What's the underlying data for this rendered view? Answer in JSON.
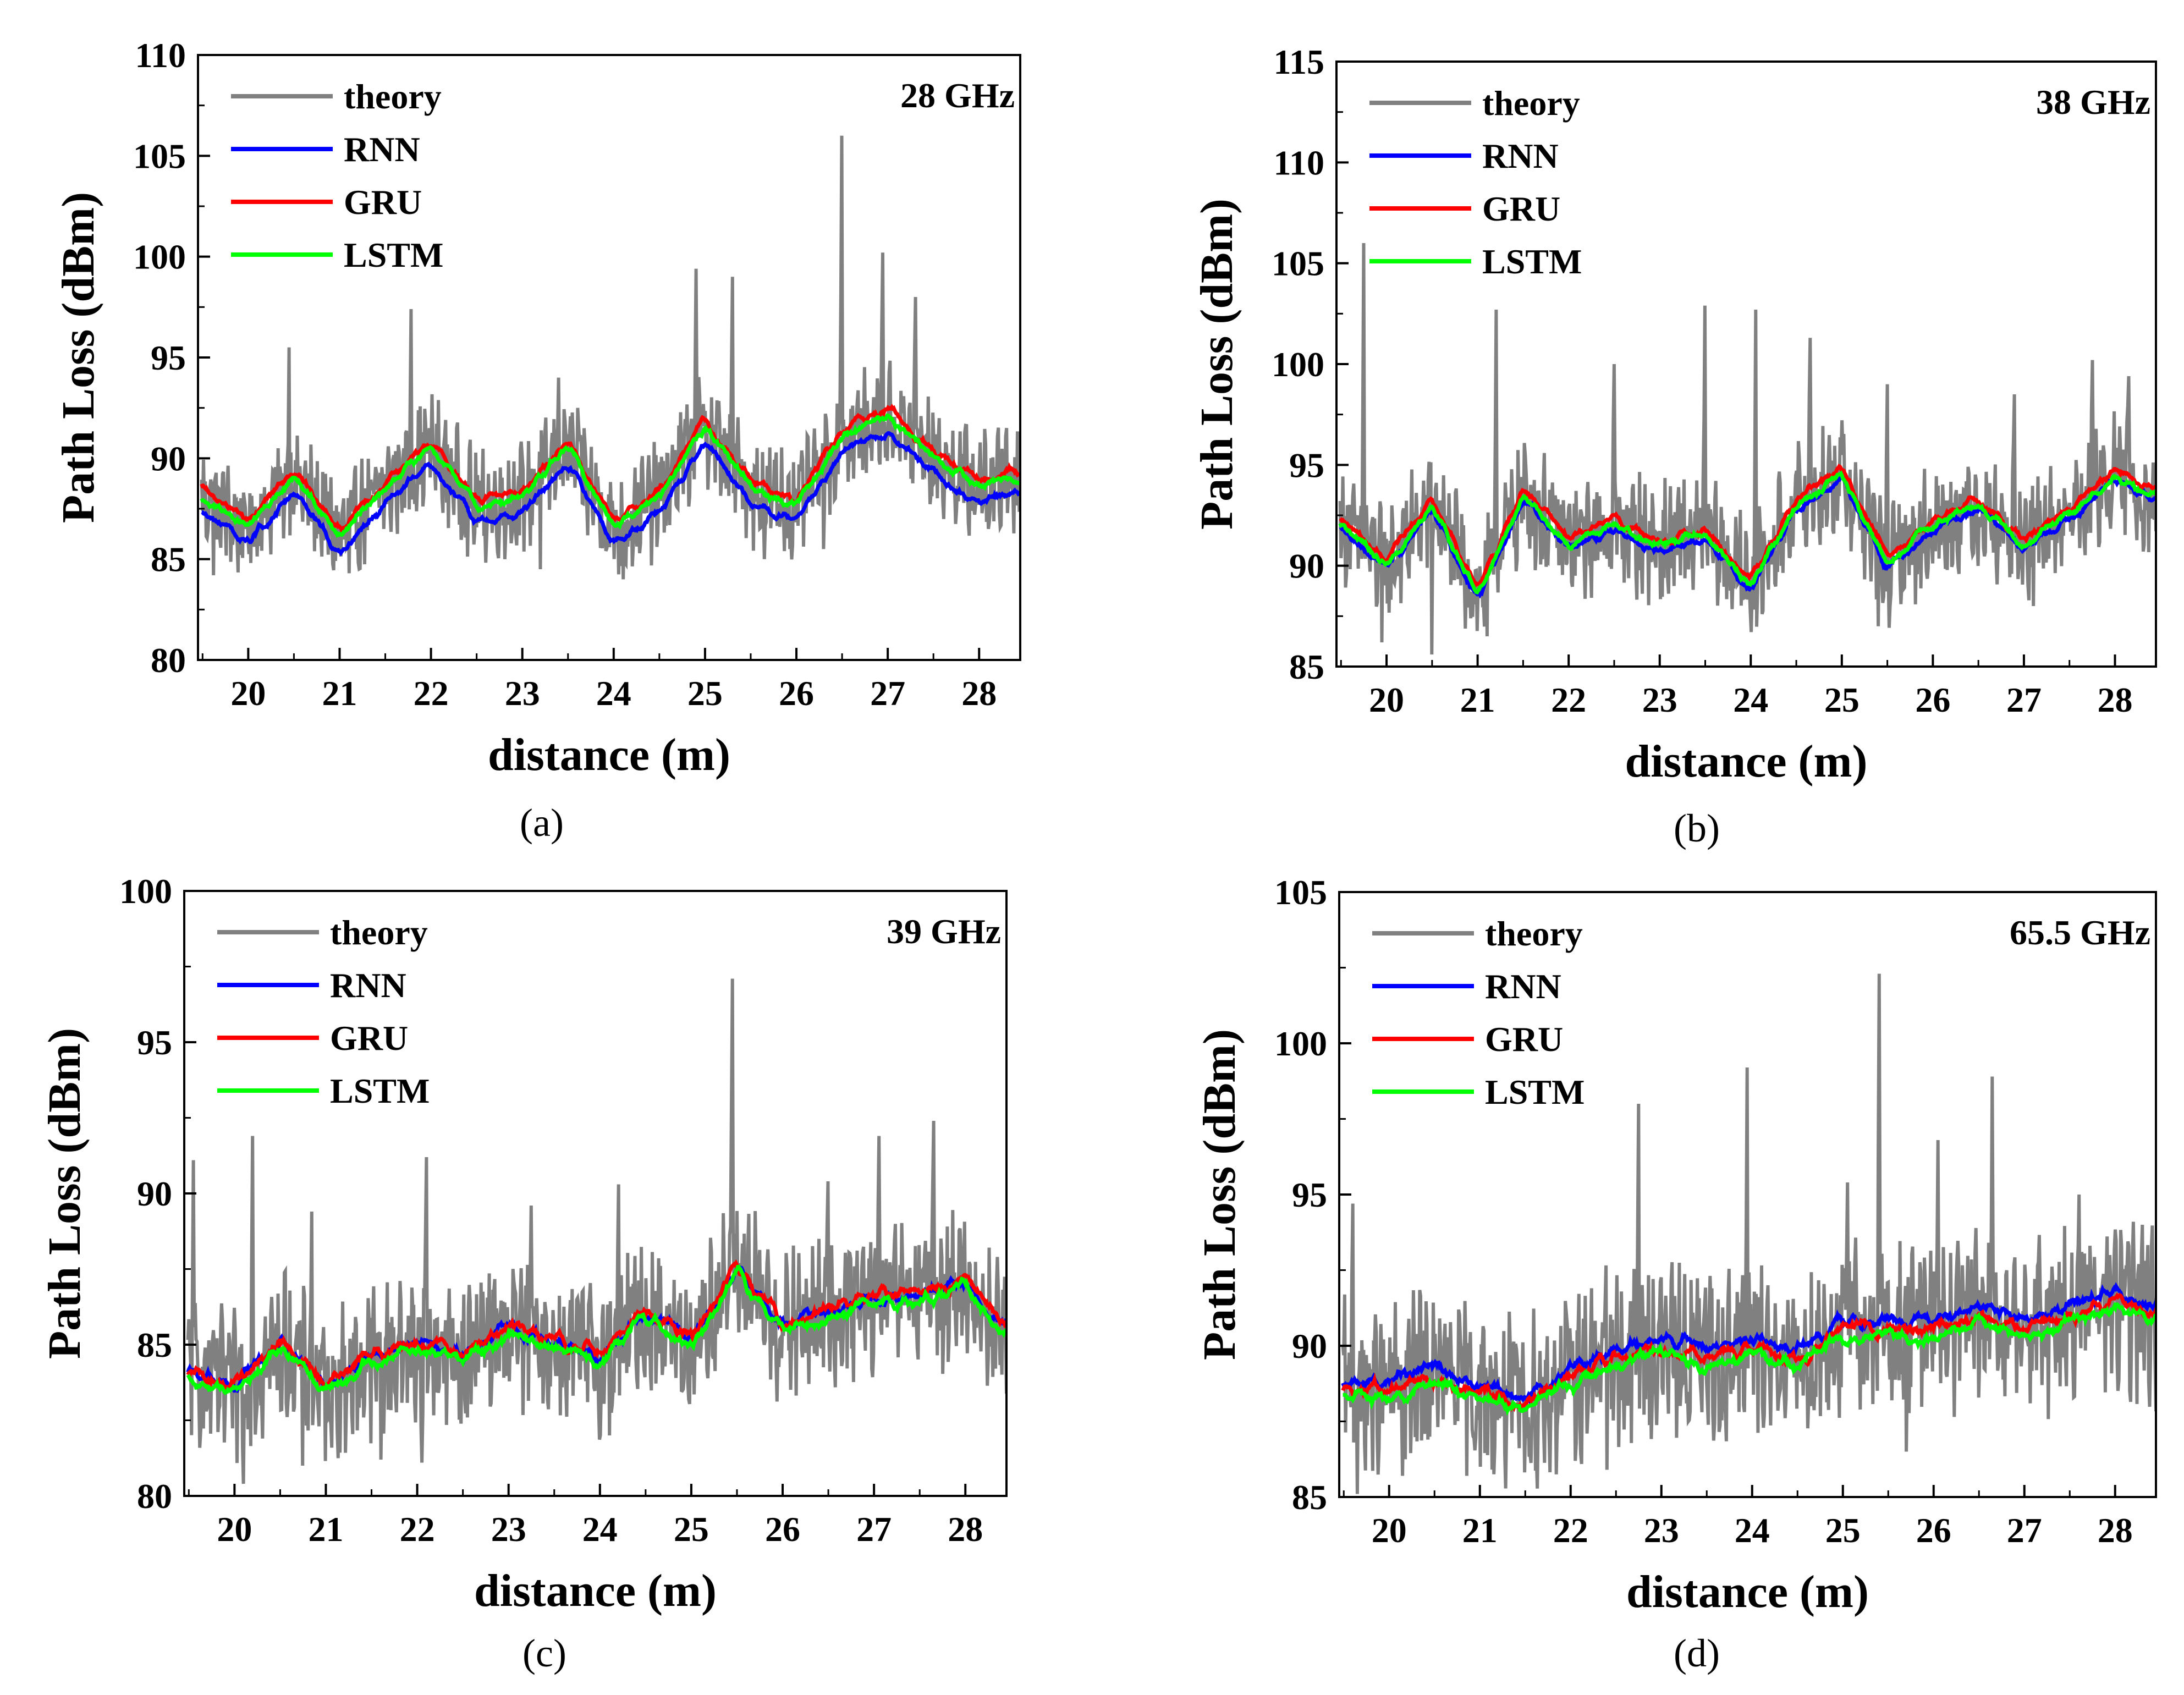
{
  "series_styles": [
    {
      "name": "theory",
      "color": "#808080"
    },
    {
      "name": "RNN",
      "color": "#0000ff"
    },
    {
      "name": "GRU",
      "color": "#ff0000"
    },
    {
      "name": "LSTM",
      "color": "#00ff00"
    }
  ],
  "chart_data": [
    {
      "type": "line",
      "panel": "a",
      "caption": "(a)",
      "frequency_label": "28 GHz",
      "xlabel": "distance (m)",
      "ylabel": "Path Loss (dBm)",
      "xlim": [
        19.45,
        28.45
      ],
      "ylim": [
        80,
        110
      ],
      "xticks": [
        20,
        21,
        22,
        23,
        24,
        25,
        26,
        27,
        28
      ],
      "yticks": [
        80,
        85,
        90,
        95,
        100,
        105,
        110
      ],
      "legend": [
        "theory",
        "RNN",
        "GRU",
        "LSTM"
      ],
      "legend_position": "top-left",
      "x": [
        19.5,
        20.0,
        20.5,
        21.0,
        21.5,
        22.0,
        22.5,
        23.0,
        23.5,
        24.0,
        24.5,
        25.0,
        25.5,
        26.0,
        26.5,
        27.0,
        27.5,
        28.0,
        28.4
      ],
      "trend": [
        88.0,
        86.5,
        89.0,
        86.0,
        88.5,
        90.5,
        87.5,
        88.0,
        90.5,
        86.5,
        88.0,
        91.5,
        88.5,
        87.5,
        91.0,
        92.0,
        90.0,
        88.5,
        89.0
      ],
      "theory_noise": 2.2,
      "theory_spikes": [
        [
          19.62,
          91.7
        ],
        [
          20.45,
          95.5
        ],
        [
          21.78,
          97.4
        ],
        [
          23.4,
          94.0
        ],
        [
          24.9,
          99.4
        ],
        [
          25.3,
          99.0
        ],
        [
          26.5,
          106.0
        ],
        [
          26.95,
          100.2
        ],
        [
          27.3,
          98.0
        ],
        [
          28.3,
          91.5
        ]
      ],
      "theory_dips": [
        [
          19.62,
          84.2
        ],
        [
          21.1,
          84.3
        ],
        [
          23.2,
          84.5
        ],
        [
          24.1,
          84.0
        ],
        [
          25.65,
          85.0
        ],
        [
          26.3,
          85.5
        ],
        [
          28.1,
          86.5
        ]
      ],
      "series_offsets": {
        "RNN": -0.7,
        "GRU": 0.4,
        "LSTM": 0.1
      }
    },
    {
      "type": "line",
      "panel": "b",
      "caption": "(b)",
      "frequency_label": "38 GHz",
      "xlabel": "distance (m)",
      "ylabel": "Path Loss (dBm)",
      "xlim": [
        19.45,
        28.45
      ],
      "ylim": [
        85,
        115
      ],
      "xticks": [
        20,
        21,
        22,
        23,
        24,
        25,
        26,
        27,
        28
      ],
      "yticks": [
        85,
        90,
        95,
        100,
        105,
        110,
        115
      ],
      "legend": [
        "theory",
        "RNN",
        "GRU",
        "LSTM"
      ],
      "legend_position": "top-left",
      "x": [
        19.5,
        20.0,
        20.5,
        21.0,
        21.5,
        22.0,
        22.5,
        23.0,
        23.5,
        24.0,
        24.5,
        25.0,
        25.5,
        26.0,
        26.5,
        27.0,
        27.5,
        28.0,
        28.4
      ],
      "trend": [
        92.0,
        90.0,
        93.0,
        88.5,
        93.5,
        91.0,
        92.0,
        91.0,
        91.5,
        89.0,
        93.0,
        94.5,
        90.0,
        92.0,
        93.0,
        91.0,
        92.5,
        94.5,
        93.5
      ],
      "theory_noise": 2.4,
      "theory_spikes": [
        [
          19.75,
          106.0
        ],
        [
          21.2,
          102.7
        ],
        [
          22.5,
          100.0
        ],
        [
          23.5,
          102.9
        ],
        [
          24.05,
          102.7
        ],
        [
          24.65,
          101.3
        ],
        [
          25.5,
          99.0
        ],
        [
          26.9,
          98.5
        ],
        [
          27.75,
          100.2
        ],
        [
          28.15,
          99.4
        ]
      ],
      "theory_dips": [
        [
          19.95,
          86.2
        ],
        [
          20.5,
          85.6
        ],
        [
          21.1,
          86.5
        ],
        [
          25.4,
          87.0
        ],
        [
          27.1,
          88.0
        ]
      ],
      "series_offsets": {
        "RNN": -0.2,
        "GRU": 0.3,
        "LSTM": 0.0
      }
    },
    {
      "type": "line",
      "panel": "c",
      "caption": "(c)",
      "frequency_label": "39 GHz",
      "xlabel": "distance (m)",
      "ylabel": "Path Loss (dBm)",
      "xlim": [
        19.45,
        28.45
      ],
      "ylim": [
        80,
        100
      ],
      "xticks": [
        20,
        21,
        22,
        23,
        24,
        25,
        26,
        27,
        28
      ],
      "yticks": [
        80,
        85,
        90,
        95,
        100
      ],
      "legend": [
        "theory",
        "RNN",
        "GRU",
        "LSTM"
      ],
      "legend_position": "top-left",
      "x": [
        19.5,
        20.0,
        20.5,
        21.0,
        21.5,
        22.0,
        22.5,
        23.0,
        23.5,
        24.0,
        24.5,
        25.0,
        25.5,
        26.0,
        26.5,
        27.0,
        27.5,
        28.0,
        28.4
      ],
      "trend": [
        84.0,
        83.5,
        85.0,
        83.5,
        84.5,
        85.0,
        84.5,
        85.5,
        85.0,
        84.5,
        86.0,
        85.0,
        87.5,
        85.5,
        86.0,
        86.5,
        86.5,
        87.0,
        85.5
      ],
      "theory_noise": 2.0,
      "theory_spikes": [
        [
          19.55,
          91.1
        ],
        [
          20.2,
          91.9
        ],
        [
          20.85,
          89.4
        ],
        [
          22.1,
          91.2
        ],
        [
          23.25,
          89.6
        ],
        [
          24.2,
          90.3
        ],
        [
          25.45,
          97.1
        ],
        [
          26.5,
          90.4
        ],
        [
          27.05,
          91.9
        ],
        [
          27.65,
          92.4
        ]
      ],
      "theory_dips": [
        [
          20.1,
          80.4
        ],
        [
          20.75,
          81.0
        ],
        [
          21.6,
          81.2
        ],
        [
          22.05,
          81.1
        ],
        [
          24.1,
          82.0
        ]
      ],
      "series_offsets": {
        "RNN": 0.1,
        "GRU": 0.2,
        "LSTM": -0.1
      }
    },
    {
      "type": "line",
      "panel": "d",
      "caption": "(d)",
      "frequency_label": "65.5 GHz",
      "xlabel": "distance (m)",
      "ylabel": "Path Loss (dBm)",
      "xlim": [
        19.45,
        28.45
      ],
      "ylim": [
        85,
        105
      ],
      "xticks": [
        20,
        21,
        22,
        23,
        24,
        25,
        26,
        27,
        28
      ],
      "yticks": [
        85,
        90,
        95,
        100,
        105
      ],
      "legend": [
        "theory",
        "RNN",
        "GRU",
        "LSTM"
      ],
      "legend_position": "top-left",
      "x": [
        19.5,
        20.0,
        20.5,
        21.0,
        21.5,
        22.0,
        22.5,
        23.0,
        23.5,
        24.0,
        24.5,
        25.0,
        25.5,
        26.0,
        26.5,
        27.0,
        27.5,
        28.0,
        28.4
      ],
      "trend": [
        88.5,
        88.5,
        89.0,
        88.5,
        88.0,
        89.0,
        89.5,
        90.0,
        89.5,
        90.0,
        89.5,
        90.5,
        90.5,
        90.5,
        91.0,
        90.5,
        91.0,
        91.5,
        91.0
      ],
      "theory_noise": 2.3,
      "theory_spikes": [
        [
          19.6,
          94.7
        ],
        [
          22.4,
          96.4
        ],
        [
          22.75,
          98.0
        ],
        [
          23.95,
          99.2
        ],
        [
          25.05,
          95.4
        ],
        [
          25.4,
          102.3
        ],
        [
          26.05,
          96.8
        ],
        [
          26.65,
          98.9
        ],
        [
          27.6,
          95.0
        ],
        [
          28.3,
          94.0
        ]
      ],
      "theory_dips": [
        [
          19.65,
          85.1
        ],
        [
          20.15,
          85.7
        ],
        [
          21.0,
          86.0
        ],
        [
          22.4,
          85.9
        ],
        [
          25.7,
          86.5
        ]
      ],
      "series_offsets": {
        "RNN": 0.3,
        "GRU": 0.0,
        "LSTM": -0.2
      }
    }
  ]
}
